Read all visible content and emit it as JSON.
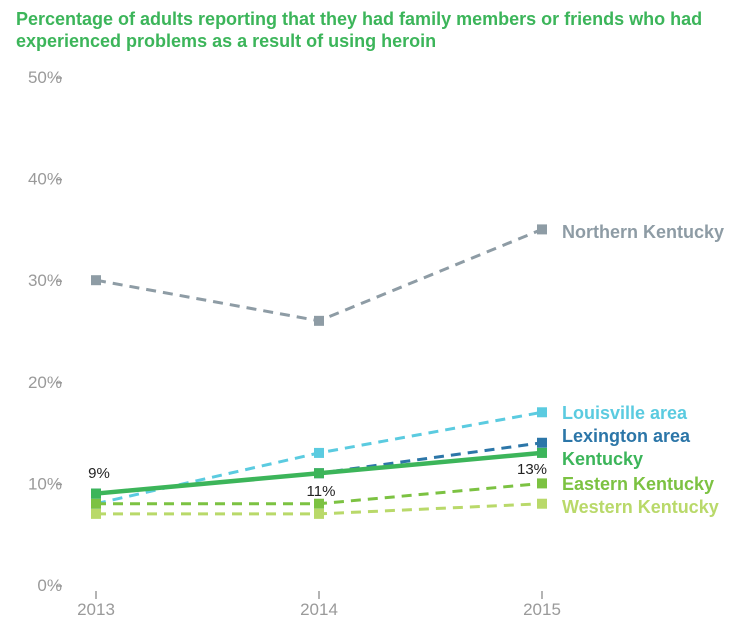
{
  "chart_data": {
    "type": "line",
    "title": "Percentage of adults reporting that they had family members or friends who had experienced problems as a result of using heroin",
    "x": [
      "2013",
      "2014",
      "2015"
    ],
    "ylim": [
      0,
      50
    ],
    "yticks": [
      "0%",
      "10%",
      "20%",
      "30%",
      "40%",
      "50%"
    ],
    "grid": false,
    "series": [
      {
        "name": "Northern Kentucky",
        "values": [
          30,
          26,
          35
        ],
        "color": "#8e9ca5",
        "dashed": true
      },
      {
        "name": "Louisville area",
        "values": [
          8,
          13,
          17
        ],
        "color": "#5bcbe0",
        "dashed": true
      },
      {
        "name": "Lexington area",
        "values": [
          9,
          11,
          14
        ],
        "color": "#2c76a8",
        "dashed": true
      },
      {
        "name": "Kentucky",
        "values": [
          9,
          11,
          13
        ],
        "color": "#3cb55a",
        "dashed": false
      },
      {
        "name": "Eastern Kentucky",
        "values": [
          8,
          8,
          10
        ],
        "color": "#7cc242",
        "dashed": true
      },
      {
        "name": "Western Kentucky",
        "values": [
          7,
          7,
          8
        ],
        "color": "#b9d96a",
        "dashed": true
      }
    ],
    "data_labels": [
      "9%",
      "11%",
      "13%"
    ]
  }
}
